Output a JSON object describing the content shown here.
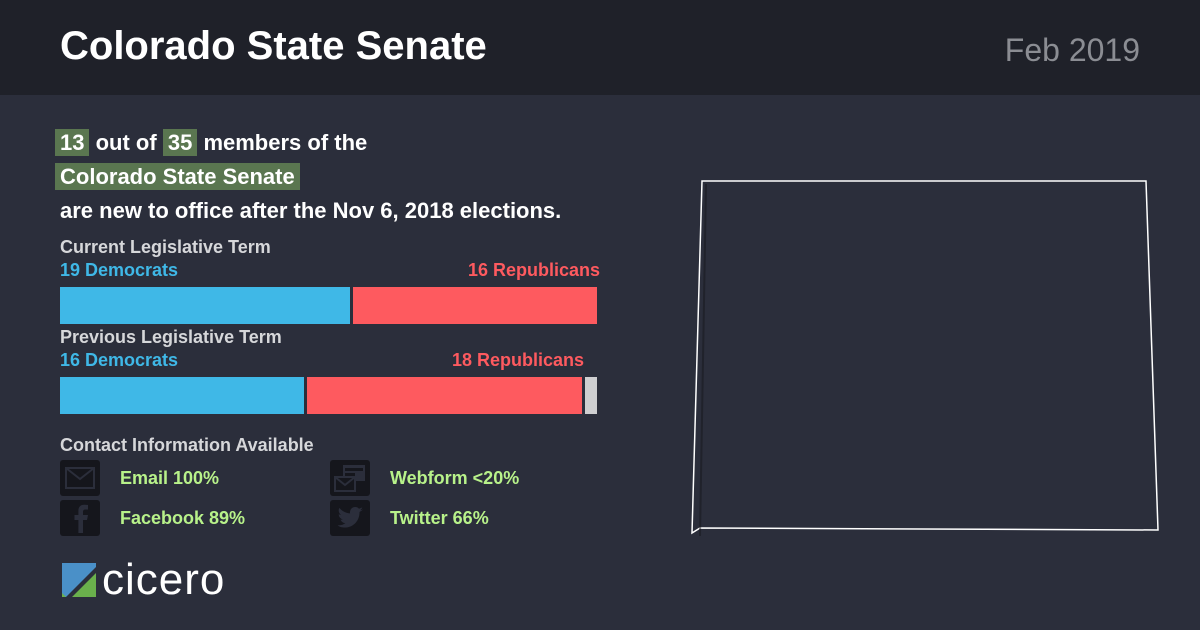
{
  "header": {
    "title": "Colorado State Senate",
    "date": "Feb 2019"
  },
  "intro": {
    "new_count": "13",
    "out_of": "out of",
    "total": "35",
    "members_of": "members of the",
    "body_name": "Colorado State Senate",
    "tail": "are new to office after the Nov 6, 2018 elections."
  },
  "current_term": {
    "label": "Current Legislative Term",
    "dem_label": "19 Democrats",
    "rep_label": "16 Republicans",
    "dem": 19,
    "rep": 16,
    "other": 0
  },
  "previous_term": {
    "label": "Previous Legislative Term",
    "dem_label": "16 Democrats",
    "rep_label": "18 Republicans",
    "dem": 16,
    "rep": 18,
    "other": 1
  },
  "contact": {
    "title": "Contact Information Available",
    "email": "Email 100%",
    "webform": "Webform <20%",
    "facebook": "Facebook 89%",
    "twitter": "Twitter 66%"
  },
  "logo": {
    "word": "cicero"
  },
  "colors": {
    "democrat": "#3fb8e7",
    "republican": "#fe5a5f",
    "other": "#cfcfd1",
    "highlight": "#5a7650",
    "contact_text": "#b8f28a"
  },
  "icons": [
    "email-icon",
    "webform-icon",
    "facebook-icon",
    "twitter-icon",
    "cicero-logo-icon"
  ]
}
